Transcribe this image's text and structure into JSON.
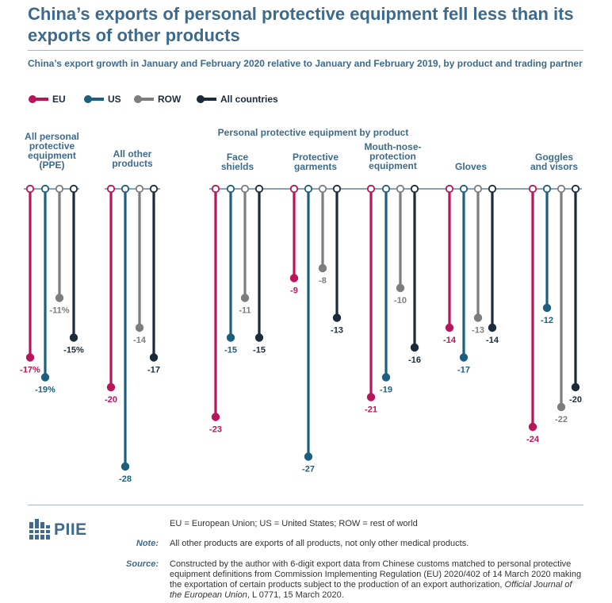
{
  "title": "China’s exports of personal protective equipment fell less than its exports of other products",
  "subtitle": "China’s export growth in January and February 2020 relative to January and February 2019, by product and trading partner",
  "legend": [
    {
      "label": "EU",
      "color": "#b8155a"
    },
    {
      "label": "US",
      "color": "#1d5f7f"
    },
    {
      "label": "ROW",
      "color": "#7d7d7d"
    },
    {
      "label": "All countries",
      "color": "#1b2b3b"
    }
  ],
  "ppe_header": "Personal protective equipment by product",
  "chart_data": {
    "type": "lollipop",
    "series": [
      {
        "name": "EU",
        "color": "#b8155a"
      },
      {
        "name": "US",
        "color": "#1d5f7f"
      },
      {
        "name": "ROW",
        "color": "#7d7d7d"
      },
      {
        "name": "All countries",
        "color": "#1b2b3b"
      }
    ],
    "groups": [
      {
        "label": [
          "All personal",
          "protective",
          "equipment",
          "(PPE)"
        ],
        "values": [
          -17,
          -19,
          -11,
          -15
        ],
        "value_labels": [
          "-17%",
          "-19%",
          "-11%",
          "-15%"
        ]
      },
      {
        "label": [
          "All other",
          "products"
        ],
        "values": [
          -20,
          -28,
          -14,
          -17
        ],
        "value_labels": [
          "-20",
          "-28",
          "-14",
          "-17"
        ]
      },
      {
        "label": [
          "Face",
          "shields"
        ],
        "values": [
          -23,
          -15,
          -11,
          -15
        ],
        "value_labels": [
          "-23",
          "-15",
          "-11",
          "-15"
        ]
      },
      {
        "label": [
          "Protective",
          "garments"
        ],
        "values": [
          -9,
          -27,
          -8,
          -13
        ],
        "value_labels": [
          "-9",
          "-27",
          "-8",
          "-13"
        ]
      },
      {
        "label": [
          "Mouth-nose-",
          "protection",
          "equipment"
        ],
        "values": [
          -21,
          -19,
          -10,
          -16
        ],
        "value_labels": [
          "-21",
          "-19",
          "-10",
          "-16"
        ]
      },
      {
        "label": [
          "Gloves"
        ],
        "values": [
          -14,
          -17,
          -13,
          -14
        ],
        "value_labels": [
          "-14",
          "-17",
          "-13",
          "-14"
        ]
      },
      {
        "label": [
          "Goggles",
          "and visors"
        ],
        "values": [
          -24,
          -12,
          -22,
          -20
        ],
        "value_labels": [
          "-24",
          "-12",
          "-22",
          "-20"
        ]
      }
    ],
    "ylim": [
      -28,
      0
    ]
  },
  "footer": {
    "logo": "PIIE",
    "abbreviations": "EU = European Union; US = United States; ROW = rest of world",
    "note_label": "Note:",
    "note": "All other products are exports of all products, not only other medical products.",
    "source_label": "Source:",
    "source": "Constructed by the author with 6-digit export data from Chinese customs matched to personal protective equipment definitions from Commission Implementing Regulation (EU) 2020/402 of 14 March 2020 making the exportation of certain products subject to the production of an export authorization,",
    "source_journal": "Official Journal of the European Union",
    "source_tail": ", L 0771, 15 March 2020."
  }
}
